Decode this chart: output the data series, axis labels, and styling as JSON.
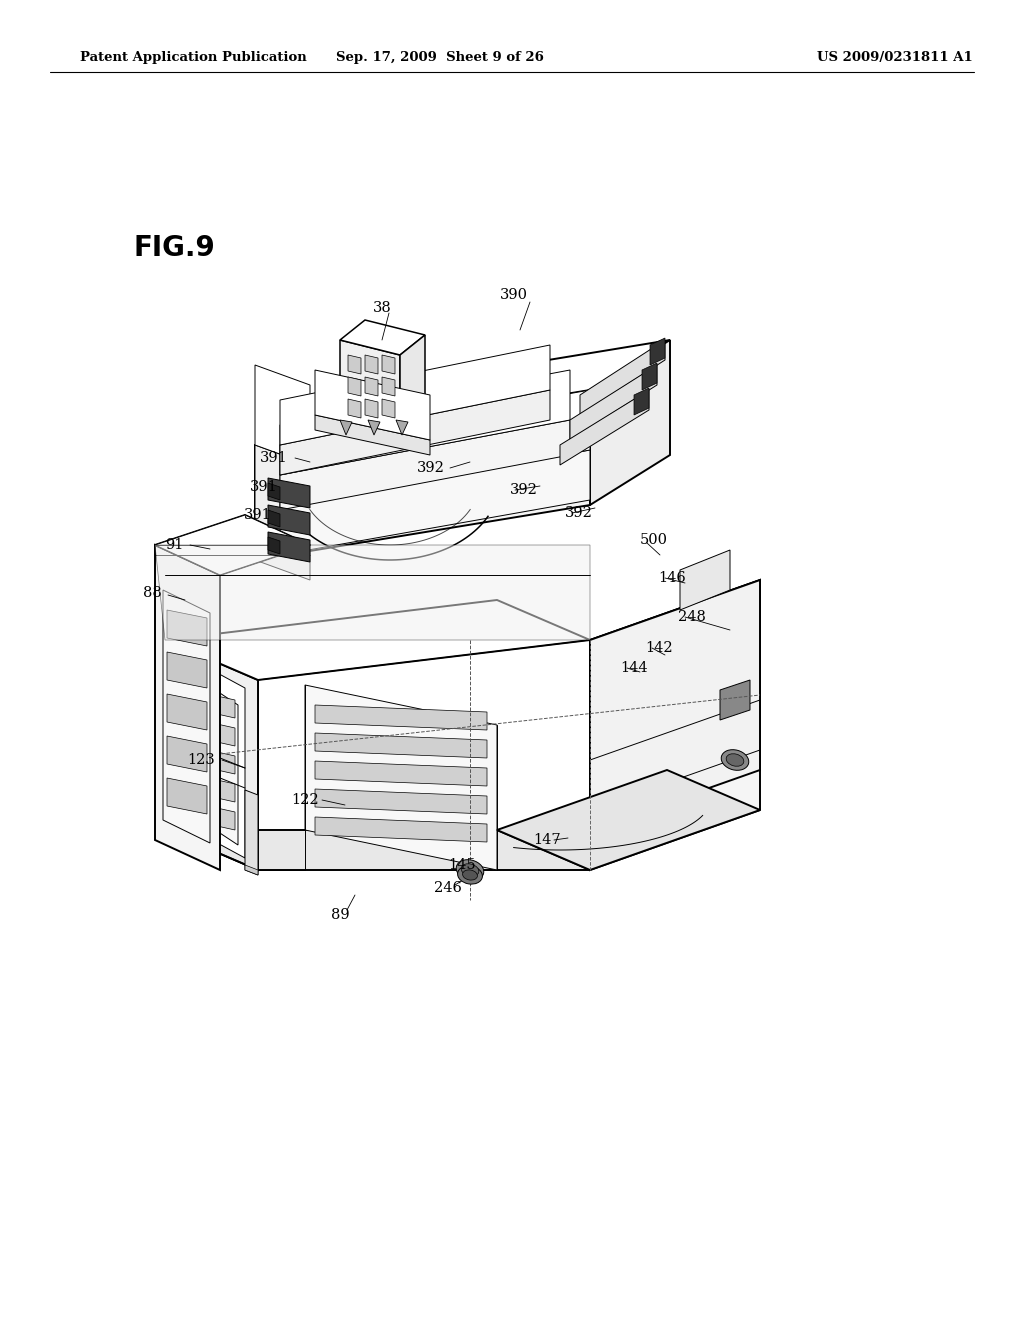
{
  "bg_color": "#ffffff",
  "header_left": "Patent Application Publication",
  "header_center": "Sep. 17, 2009  Sheet 9 of 26",
  "header_right": "US 2009/0231811 A1",
  "fig_label": "FIG.9",
  "header_fontsize": 9.5,
  "fig_label_fontsize": 20,
  "label_fontsize": 10.5
}
